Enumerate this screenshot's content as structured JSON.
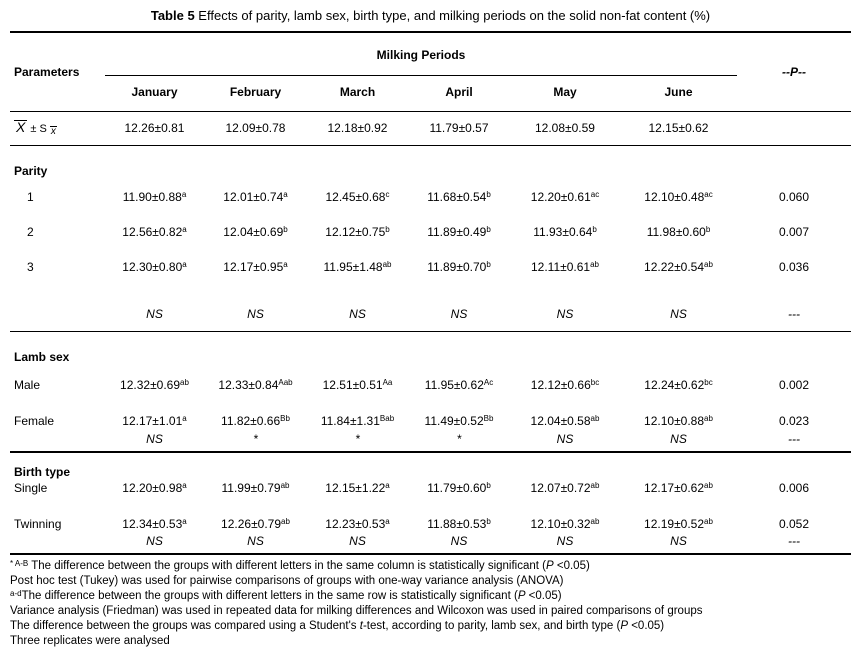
{
  "title": {
    "bold": "Table 5",
    "rest": " Effects of parity, lamb sex, birth type, and milking periods on the solid non-fat content (%)"
  },
  "header": {
    "parameters": "Parameters",
    "milking_periods": "Milking Periods",
    "months": [
      "January",
      "February",
      "March",
      "April",
      "May",
      "June"
    ],
    "p_label": "--P--"
  },
  "mean": {
    "x": "X",
    "pm": "± S",
    "xsub": "x",
    "values": [
      "12.26±0.81",
      "12.09±0.78",
      "12.18±0.92",
      "11.79±0.57",
      "12.08±0.59",
      "12.15±0.62"
    ],
    "p": ""
  },
  "sections": [
    {
      "name": "Parity",
      "rows": [
        {
          "label": "1",
          "cells": [
            [
              "11.90±0.88",
              "a"
            ],
            [
              "12.01±0.74",
              "a"
            ],
            [
              "12.45±0.68",
              "c"
            ],
            [
              "11.68±0.54",
              "b"
            ],
            [
              "12.20±0.61",
              "ac"
            ],
            [
              "12.10±0.48",
              "ac"
            ]
          ],
          "p": "0.060"
        },
        {
          "label": "2",
          "cells": [
            [
              "12.56±0.82",
              "a"
            ],
            [
              "12.04±0.69",
              "b"
            ],
            [
              "12.12±0.75",
              "b"
            ],
            [
              "11.89±0.49",
              "b"
            ],
            [
              "11.93±0.64",
              "b"
            ],
            [
              "11.98±0.60",
              "b"
            ]
          ],
          "p": "0.007"
        },
        {
          "label": "3",
          "cells": [
            [
              "12.30±0.80",
              "a"
            ],
            [
              "12.17±0.95",
              "a"
            ],
            [
              "11.95±1.48",
              "ab"
            ],
            [
              "11.89±0.70",
              "b"
            ],
            [
              "12.11±0.61",
              "ab"
            ],
            [
              "12.22±0.54",
              "ab"
            ]
          ],
          "p": "0.036"
        },
        {
          "label": "",
          "sig": true,
          "cells": [
            [
              "NS",
              ""
            ],
            [
              "NS",
              ""
            ],
            [
              "NS",
              ""
            ],
            [
              "NS",
              ""
            ],
            [
              "NS",
              ""
            ],
            [
              "NS",
              ""
            ]
          ],
          "p": "---"
        }
      ]
    },
    {
      "name": "Lamb sex",
      "rows": [
        {
          "label": "Male",
          "cells": [
            [
              "12.32±0.69",
              "ab"
            ],
            [
              "12.33±0.84",
              "Aab"
            ],
            [
              "12.51±0.51",
              "Aa"
            ],
            [
              "11.95±0.62",
              "Ac"
            ],
            [
              "12.12±0.66",
              "bc"
            ],
            [
              "12.24±0.62",
              "bc"
            ]
          ],
          "p": "0.002"
        },
        {
          "label": "Female",
          "cells": [
            [
              "12.17±1.01",
              "a"
            ],
            [
              "11.82±0.66",
              "Bb"
            ],
            [
              "11.84±1.31",
              "Bab"
            ],
            [
              "11.49±0.52",
              "Bb"
            ],
            [
              "12.04±0.58",
              "ab"
            ],
            [
              "12.10±0.88",
              "ab"
            ]
          ],
          "p": "0.023"
        },
        {
          "label": "",
          "sig": true,
          "cells": [
            [
              "NS",
              ""
            ],
            [
              "*",
              ""
            ],
            [
              "*",
              ""
            ],
            [
              "*",
              ""
            ],
            [
              "NS",
              ""
            ],
            [
              "NS",
              ""
            ]
          ],
          "p": "---"
        }
      ]
    },
    {
      "name": "Birth type",
      "rows": [
        {
          "label": "Single",
          "cells": [
            [
              "12.20±0.98",
              "a"
            ],
            [
              "11.99±0.79",
              "ab"
            ],
            [
              "12.15±1.22",
              "a"
            ],
            [
              "11.79±0.60",
              "b"
            ],
            [
              "12.07±0.72",
              "ab"
            ],
            [
              "12.17±0.62",
              "ab"
            ]
          ],
          "p": "0.006"
        },
        {
          "label": "Twinning",
          "cells": [
            [
              "12.34±0.53",
              "a"
            ],
            [
              "12.26±0.79",
              "ab"
            ],
            [
              "12.23±0.53",
              "a"
            ],
            [
              "11.88±0.53",
              "b"
            ],
            [
              "12.10±0.32",
              "ab"
            ],
            [
              "12.19±0.52",
              "ab"
            ]
          ],
          "p": "0.052"
        },
        {
          "label": "",
          "sig": true,
          "cells": [
            [
              "NS",
              ""
            ],
            [
              "NS",
              ""
            ],
            [
              "NS",
              ""
            ],
            [
              "NS",
              ""
            ],
            [
              "NS",
              ""
            ],
            [
              "NS",
              ""
            ]
          ],
          "p": "---"
        }
      ]
    }
  ],
  "footnotes": [
    [
      {
        "t": "* A-B",
        "sup": true
      },
      {
        "t": " The difference between the groups with different letters in the same column is statistically significant ("
      },
      {
        "t": "P",
        "i": true
      },
      {
        "t": " <0.05)"
      }
    ],
    [
      {
        "t": "Post hoc test (Tukey) was used for pairwise comparisons of groups with one-way variance analysis (ANOVA)"
      }
    ],
    [
      {
        "t": "a-d",
        "sup": true
      },
      {
        "t": "The difference between the groups with different letters in the same row is statistically significant ("
      },
      {
        "t": "P",
        "i": true
      },
      {
        "t": " <0.05)"
      }
    ],
    [
      {
        "t": "Variance analysis (Friedman) was used in repeated data for milking differences and Wilcoxon was used in paired comparisons of groups"
      }
    ],
    [
      {
        "t": "The difference between the groups was compared using a Student's "
      },
      {
        "t": "t",
        "i": true
      },
      {
        "t": "-test, according to parity, lamb sex, and birth type ("
      },
      {
        "t": "P",
        "i": true
      },
      {
        "t": " <0.05)"
      }
    ],
    [
      {
        "t": "Three replicates were analysed"
      }
    ]
  ]
}
